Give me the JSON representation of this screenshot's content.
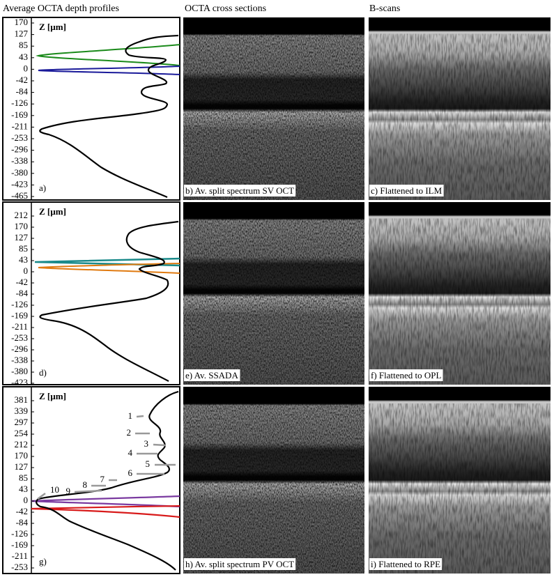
{
  "columns": [
    "Average OCTA depth profiles",
    "OCTA cross sections",
    "B-scans"
  ],
  "rows": [
    {
      "profile": {
        "axis_label": "Z [µm]",
        "ticks": [
          170,
          127,
          85,
          43,
          0,
          -42,
          -84,
          -126,
          -169,
          -211,
          -253,
          -296,
          -338,
          -380,
          -423,
          -465
        ],
        "label": "a)"
      },
      "cross_section": "b) Av. split spectrum SV OCT",
      "bscan": "c) Flattened to ILM"
    },
    {
      "profile": {
        "axis_label": "Z [µm]",
        "ticks": [
          212,
          170,
          127,
          85,
          43,
          0,
          -42,
          -84,
          -126,
          -169,
          -211,
          -253,
          -296,
          -338,
          -380,
          -423
        ],
        "label": "d)"
      },
      "cross_section": "e) Av. SSADA",
      "bscan": "f) Flattened to OPL"
    },
    {
      "profile": {
        "axis_label": "Z [µm]",
        "ticks": [
          381,
          339,
          297,
          254,
          212,
          170,
          127,
          85,
          43,
          0,
          -42,
          -84,
          -126,
          -169,
          -211,
          -253
        ],
        "label": "g)",
        "annotations": [
          "1",
          "2",
          "3",
          "4",
          "5",
          "6",
          "7",
          "8",
          "9",
          "10"
        ]
      },
      "cross_section": "h) Av. split spectrum PV OCT",
      "bscan": "i) Flattened to RPE"
    }
  ]
}
